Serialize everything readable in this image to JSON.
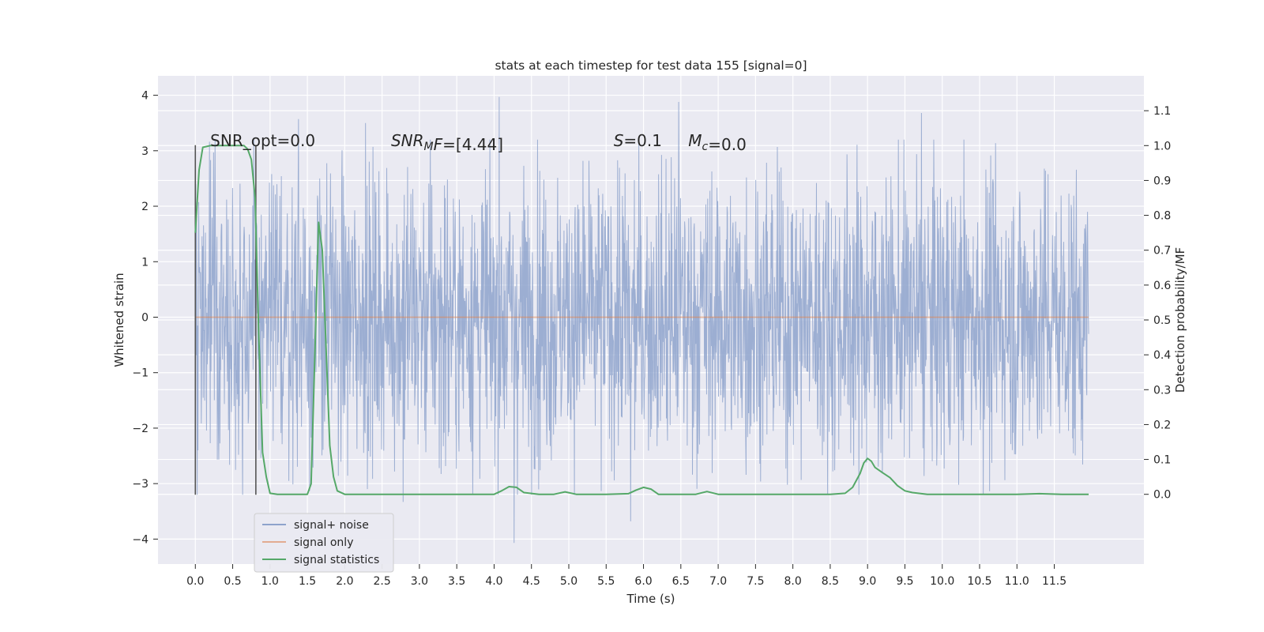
{
  "chart_data": {
    "type": "line",
    "title": "stats at each timestep for test data 155 [signal=0]",
    "xlabel": "Time (s)",
    "ylabel": "Whitened strain",
    "y2label": "Detection probability/MF",
    "xlim": [
      -0.5,
      12.7
    ],
    "ylim": [
      -4.45,
      4.35
    ],
    "y2lim": [
      -0.2,
      1.2
    ],
    "xticks": [
      0.0,
      0.5,
      1.0,
      1.5,
      2.0,
      2.5,
      3.0,
      3.5,
      4.0,
      4.5,
      5.0,
      5.5,
      6.0,
      6.5,
      7.0,
      7.5,
      8.0,
      8.5,
      9.0,
      9.5,
      10.0,
      10.5,
      11.0,
      11.5
    ],
    "xtick_labels": [
      "0.0",
      "0.5",
      "1.0",
      "1.5",
      "2.0",
      "2.5",
      "3.0",
      "3.5",
      "4.0",
      "4.5",
      "5.0",
      "5.5",
      "6.0",
      "6.5",
      "7.0",
      "7.5",
      "8.0",
      "8.5",
      "9.0",
      "9.5",
      "10.0",
      "10.5",
      "11.0",
      "11.5"
    ],
    "yticks": [
      -4,
      -3,
      -2,
      -1,
      0,
      1,
      2,
      3,
      4
    ],
    "ytick_labels": [
      "−4",
      "−3",
      "−2",
      "−1",
      "0",
      "1",
      "2",
      "3",
      "4"
    ],
    "y2ticks": [
      0.0,
      0.1,
      0.2,
      0.3,
      0.4,
      0.5,
      0.6,
      0.7,
      0.8,
      0.9,
      1.0,
      1.1
    ],
    "y2tick_labels": [
      "0.0",
      "0.1",
      "0.2",
      "0.3",
      "0.4",
      "0.5",
      "0.6",
      "0.7",
      "0.8",
      "0.9",
      "1.0",
      "1.1"
    ],
    "grid": true,
    "legend_position": "lower-left",
    "series": [
      {
        "name": "signal+ noise",
        "color": "#8ea3cc",
        "axis": "left",
        "description_range": [
          0.0,
          11.96
        ],
        "typical_amplitude": 1.3,
        "extremes": [
          {
            "x": 4.07,
            "y": 3.97
          },
          {
            "x": 6.47,
            "y": 3.88
          },
          {
            "x": 4.27,
            "y": -4.07
          },
          {
            "x": 5.83,
            "y": -3.68
          },
          {
            "x": 9.72,
            "y": 3.68
          },
          {
            "x": 2.78,
            "y": -3.33
          },
          {
            "x": 1.38,
            "y": 3.57
          },
          {
            "x": 2.28,
            "y": 3.5
          }
        ]
      },
      {
        "name": "signal only",
        "color": "#dd8452",
        "axis": "left",
        "x": [
          0.0,
          11.96
        ],
        "y": [
          0.0,
          0.0
        ]
      },
      {
        "name": "signal statistics",
        "color": "#55a868",
        "axis": "right",
        "x": [
          0.0,
          0.05,
          0.1,
          0.2,
          0.3,
          0.5,
          0.65,
          0.7,
          0.75,
          0.8,
          0.85,
          0.9,
          0.95,
          1.0,
          1.1,
          1.3,
          1.5,
          1.55,
          1.6,
          1.65,
          1.7,
          1.75,
          1.8,
          1.85,
          1.9,
          2.0,
          2.5,
          3.0,
          3.5,
          4.0,
          4.1,
          4.2,
          4.3,
          4.4,
          4.6,
          4.8,
          4.95,
          5.1,
          5.5,
          5.8,
          5.9,
          6.0,
          6.1,
          6.2,
          6.3,
          6.5,
          6.7,
          6.85,
          7.0,
          7.5,
          8.0,
          8.5,
          8.7,
          8.8,
          8.9,
          8.95,
          9.0,
          9.05,
          9.1,
          9.2,
          9.3,
          9.4,
          9.5,
          9.6,
          9.8,
          10.0,
          10.5,
          11.0,
          11.3,
          11.6,
          11.96
        ],
        "y": [
          0.75,
          0.93,
          0.995,
          1.0,
          1.0,
          1.0,
          1.0,
          0.99,
          0.96,
          0.85,
          0.45,
          0.12,
          0.05,
          0.003,
          0.0,
          0.0,
          0.0,
          0.03,
          0.4,
          0.78,
          0.7,
          0.42,
          0.14,
          0.05,
          0.01,
          0.0,
          0.0,
          0.0,
          0.0,
          0.0,
          0.01,
          0.022,
          0.02,
          0.005,
          0.0,
          0.0,
          0.007,
          0.0,
          0.0,
          0.002,
          0.012,
          0.02,
          0.015,
          0.0,
          0.0,
          0.0,
          0.0,
          0.008,
          0.0,
          0.0,
          0.0,
          0.0,
          0.003,
          0.02,
          0.06,
          0.09,
          0.103,
          0.095,
          0.077,
          0.062,
          0.048,
          0.025,
          0.01,
          0.005,
          0.0,
          0.0,
          0.0,
          0.0,
          0.002,
          0.0,
          0.0
        ]
      }
    ],
    "vlines": [
      {
        "x": 0.0,
        "y": [
          -3.2,
          3.1
        ],
        "color": "#555555"
      },
      {
        "x": 0.81,
        "y": [
          -3.2,
          3.1
        ],
        "color": "#555555"
      }
    ],
    "annotations": [
      {
        "text": "SNR_opt=0.0",
        "x": 0.2,
        "y": 3.08
      },
      {
        "text_base": "SNR",
        "text_sub": "M",
        "text_tail": "F=[4.44]",
        "x": 2.62,
        "y": 3.08
      },
      {
        "text_base": "S",
        "text_tail": "=0.1",
        "x": 5.6,
        "y": 3.08
      },
      {
        "text_base": "M",
        "text_sub": "c",
        "text_tail": "=0.0",
        "x": 6.6,
        "y": 3.08
      }
    ]
  }
}
